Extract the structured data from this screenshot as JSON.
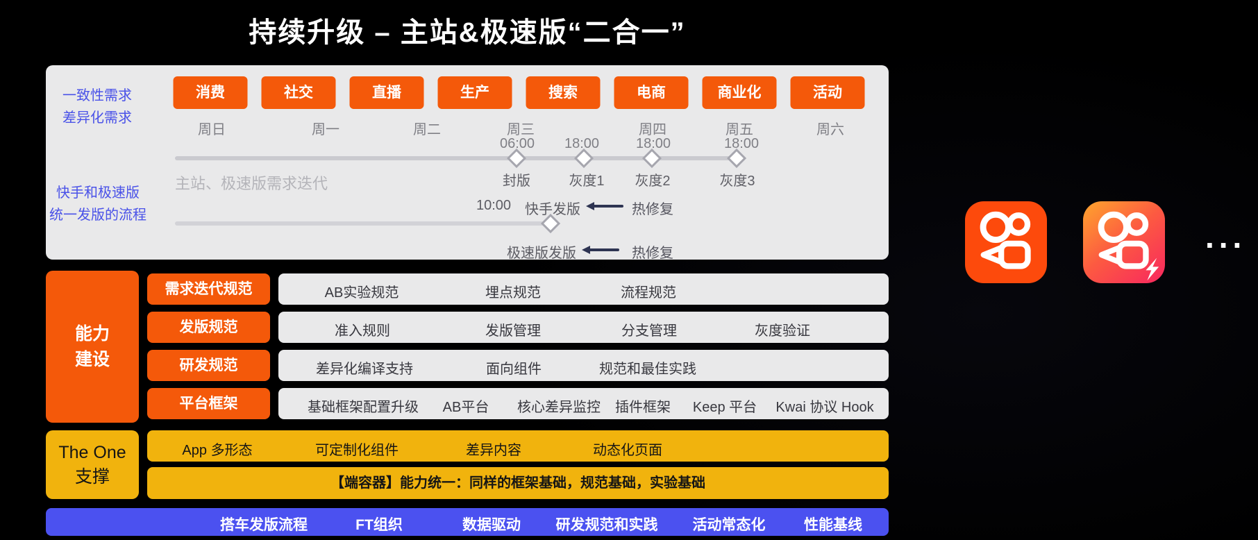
{
  "title": "持续升级 – 主站&极速版“二合一”",
  "top_panel": {
    "side_labels": {
      "consistency": [
        "一致性需求",
        "差异化需求"
      ],
      "process": [
        "快手和极速版",
        "统一发版的流程"
      ]
    },
    "categories": [
      "消费",
      "社交",
      "直播",
      "生产",
      "搜索",
      "电商",
      "商业化",
      "活动"
    ],
    "days": [
      "周日",
      "周一",
      "周二",
      "周三",
      "周四",
      "周五",
      "周六"
    ],
    "times": [
      "06:00",
      "18:00",
      "18:00",
      "18:00"
    ],
    "milestones": [
      "封版",
      "灰度1",
      "灰度2",
      "灰度3"
    ],
    "iteration_label": "主站、极速版需求迭代",
    "release_main": {
      "time": "10:00",
      "label": "快手发版",
      "hotfix": "热修复"
    },
    "release_lite": {
      "label": "极速版发版",
      "hotfix": "热修复"
    }
  },
  "capability": {
    "title_lines": [
      "能力",
      "建设"
    ],
    "rows": [
      {
        "label": "需求迭代规范",
        "items": [
          "AB实验规范",
          "埋点规范",
          "流程规范"
        ]
      },
      {
        "label": "发版规范",
        "items": [
          "准入规则",
          "发版管理",
          "分支管理",
          "灰度验证"
        ]
      },
      {
        "label": "研发规范",
        "items": [
          "差异化编译支持",
          "面向组件",
          "规范和最佳实践"
        ]
      },
      {
        "label": "平台框架",
        "items": [
          "基础框架配置升级",
          "AB平台",
          "核心差异监控",
          "插件框架",
          "Keep 平台",
          "Kwai 协议 Hook"
        ]
      }
    ]
  },
  "theone": {
    "title_lines": [
      "The One",
      "支撑"
    ],
    "row1_items": [
      "App 多形态",
      "可定制化组件",
      "差异内容",
      "动态化页面"
    ],
    "row2_text": "【端容器】能力统一：同样的框架基础，规范基础，实验基础"
  },
  "bottom_bar_items": [
    "搭车发版流程",
    "FT组织",
    "数据驱动",
    "研发规范和实践",
    "活动常态化",
    "性能基线"
  ],
  "right_area": {
    "icons": [
      "kuaishou-app-icon",
      "kuaishou-lite-app-icon"
    ],
    "ellipsis": "..."
  },
  "colors": {
    "orange": "#F4590A",
    "yellow": "#F1B30D",
    "bottom_blue": "#4B51F0",
    "panel_gray": "#E9E9EA",
    "accent_blue_text": "#4A52E8",
    "arrow_navy": "#2E3452",
    "icon_orange": "#FD4A0C",
    "icon_gradient_start": "#FFA52D",
    "icon_gradient_end": "#F8275F"
  }
}
